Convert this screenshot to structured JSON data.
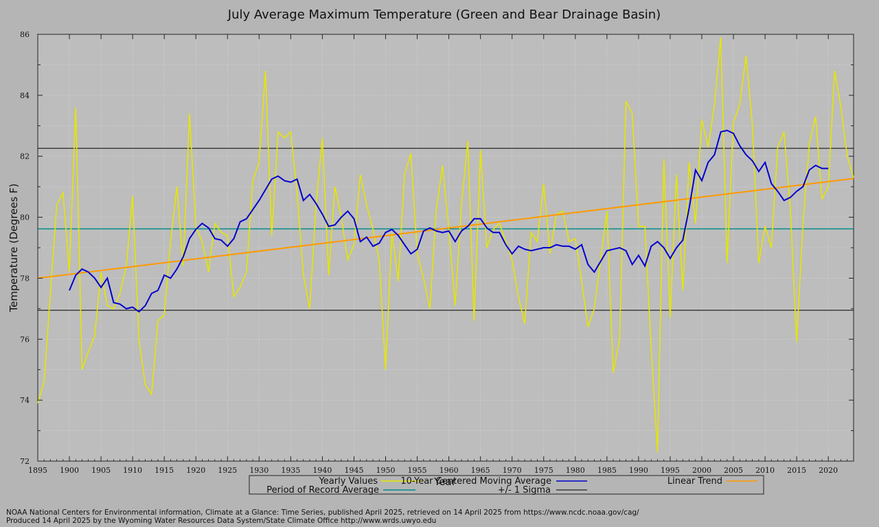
{
  "chart_data": {
    "type": "line",
    "title": "July Average Maximum Temperature (Green and Bear Drainage Basin)",
    "xlabel": "Year",
    "ylabel": "Temperature (Degrees F)",
    "xlim": [
      1895,
      2024
    ],
    "ylim": [
      72,
      86
    ],
    "x_ticks": [
      1895,
      1900,
      1905,
      1910,
      1915,
      1920,
      1925,
      1930,
      1935,
      1940,
      1945,
      1950,
      1955,
      1960,
      1965,
      1970,
      1975,
      1980,
      1985,
      1990,
      1995,
      2000,
      2005,
      2010,
      2015,
      2020
    ],
    "y_ticks": [
      72,
      74,
      76,
      78,
      80,
      82,
      84,
      86
    ],
    "grid": true,
    "colors": {
      "background": "#b5b5b5",
      "plot_area": "#bdbdbd",
      "yearly": "#e6e600",
      "moving_avg": "#0000cc",
      "trend": "#ff9900",
      "record_avg": "#008b8b",
      "sigma": "#000000"
    },
    "series": [
      {
        "name": "Yearly Values",
        "x": [
          1895,
          1896,
          1897,
          1898,
          1899,
          1900,
          1901,
          1902,
          1903,
          1904,
          1905,
          1906,
          1907,
          1908,
          1909,
          1910,
          1911,
          1912,
          1913,
          1914,
          1915,
          1916,
          1917,
          1918,
          1919,
          1920,
          1921,
          1922,
          1923,
          1924,
          1925,
          1926,
          1927,
          1928,
          1929,
          1930,
          1931,
          1932,
          1933,
          1934,
          1935,
          1936,
          1937,
          1938,
          1939,
          1940,
          1941,
          1942,
          1943,
          1944,
          1945,
          1946,
          1947,
          1948,
          1949,
          1950,
          1951,
          1952,
          1953,
          1954,
          1955,
          1956,
          1957,
          1958,
          1959,
          1960,
          1961,
          1962,
          1963,
          1964,
          1965,
          1966,
          1967,
          1968,
          1969,
          1970,
          1971,
          1972,
          1973,
          1974,
          1975,
          1976,
          1977,
          1978,
          1979,
          1980,
          1981,
          1982,
          1983,
          1984,
          1985,
          1986,
          1987,
          1988,
          1989,
          1990,
          1991,
          1992,
          1993,
          1994,
          1995,
          1996,
          1997,
          1998,
          1999,
          2000,
          2001,
          2002,
          2003,
          2004,
          2005,
          2006,
          2007,
          2008,
          2009,
          2010,
          2011,
          2012,
          2013,
          2014,
          2015,
          2016,
          2017,
          2018,
          2019,
          2020,
          2021,
          2022,
          2023,
          2024
        ],
        "values": [
          73.9,
          74.6,
          77.5,
          80.4,
          80.8,
          78.2,
          83.6,
          75.0,
          75.6,
          76.1,
          78.2,
          77.1,
          77.0,
          77.5,
          78.4,
          80.7,
          76.0,
          74.5,
          74.2,
          76.6,
          76.8,
          79.2,
          81.0,
          78.4,
          83.4,
          79.7,
          79.2,
          78.2,
          79.8,
          79.5,
          79.4,
          77.4,
          77.7,
          78.2,
          81.2,
          81.8,
          84.8,
          79.4,
          82.8,
          82.6,
          82.8,
          80.8,
          78.1,
          77.0,
          80.4,
          82.6,
          78.1,
          81.0,
          80.0,
          78.6,
          79.1,
          81.4,
          80.4,
          79.6,
          78.6,
          75.0,
          79.5,
          77.9,
          81.4,
          82.1,
          78.8,
          78.0,
          77.0,
          80.2,
          81.7,
          79.6,
          77.1,
          80.4,
          82.5,
          76.6,
          82.2,
          79.0,
          79.6,
          79.8,
          79.2,
          78.6,
          77.4,
          76.5,
          79.5,
          79.2,
          81.1,
          78.8,
          80.1,
          80.2,
          79.2,
          79.3,
          77.9,
          76.4,
          77.0,
          78.6,
          80.2,
          74.9,
          76.0,
          83.8,
          83.4,
          79.7,
          79.7,
          75.7,
          72.3,
          81.9,
          76.7,
          81.4,
          77.6,
          81.8,
          79.8,
          83.2,
          82.3,
          83.7,
          85.9,
          78.5,
          83.1,
          83.7,
          85.3,
          83.0,
          78.5,
          79.7,
          79.0,
          82.3,
          82.8,
          80.3,
          75.9,
          79.8,
          82.4,
          83.3,
          80.6,
          81.0,
          84.8,
          83.6,
          82.0,
          81.3
        ]
      },
      {
        "name": "10-Year Centered Moving Average",
        "x": [
          1900,
          1901,
          1902,
          1903,
          1904,
          1905,
          1906,
          1907,
          1908,
          1909,
          1910,
          1911,
          1912,
          1913,
          1914,
          1915,
          1916,
          1917,
          1918,
          1919,
          1920,
          1921,
          1922,
          1923,
          1924,
          1925,
          1926,
          1927,
          1928,
          1929,
          1930,
          1931,
          1932,
          1933,
          1934,
          1935,
          1936,
          1937,
          1938,
          1939,
          1940,
          1941,
          1942,
          1943,
          1944,
          1945,
          1946,
          1947,
          1948,
          1949,
          1950,
          1951,
          1952,
          1953,
          1954,
          1955,
          1956,
          1957,
          1958,
          1959,
          1960,
          1961,
          1962,
          1963,
          1964,
          1965,
          1966,
          1967,
          1968,
          1969,
          1970,
          1971,
          1972,
          1973,
          1974,
          1975,
          1976,
          1977,
          1978,
          1979,
          1980,
          1981,
          1982,
          1983,
          1984,
          1985,
          1986,
          1987,
          1988,
          1989,
          1990,
          1991,
          1992,
          1993,
          1994,
          1995,
          1996,
          1997,
          1998,
          1999,
          2000,
          2001,
          2002,
          2003,
          2004,
          2005,
          2006,
          2007,
          2008,
          2009,
          2010,
          2011,
          2012,
          2013,
          2014,
          2015,
          2016,
          2017,
          2018,
          2019,
          2020
        ],
        "values": [
          77.6,
          78.1,
          78.3,
          78.2,
          78.0,
          77.7,
          78.0,
          77.2,
          77.15,
          77.0,
          77.05,
          76.9,
          77.1,
          77.5,
          77.6,
          78.1,
          78.0,
          78.3,
          78.7,
          79.3,
          79.6,
          79.8,
          79.65,
          79.3,
          79.25,
          79.05,
          79.3,
          79.85,
          79.95,
          80.25,
          80.55,
          80.9,
          81.25,
          81.35,
          81.2,
          81.15,
          81.25,
          80.55,
          80.75,
          80.45,
          80.1,
          79.7,
          79.75,
          80.0,
          80.2,
          79.95,
          79.2,
          79.35,
          79.05,
          79.15,
          79.5,
          79.6,
          79.4,
          79.1,
          78.8,
          78.95,
          79.55,
          79.65,
          79.55,
          79.5,
          79.55,
          79.2,
          79.55,
          79.7,
          79.95,
          79.95,
          79.65,
          79.5,
          79.5,
          79.1,
          78.8,
          79.05,
          78.95,
          78.9,
          78.95,
          79.0,
          79.0,
          79.1,
          79.05,
          79.05,
          78.95,
          79.1,
          78.45,
          78.2,
          78.55,
          78.9,
          78.95,
          79.0,
          78.9,
          78.45,
          78.75,
          78.4,
          79.05,
          79.2,
          79.0,
          78.65,
          79.0,
          79.25,
          80.3,
          81.55,
          81.2,
          81.8,
          82.05,
          82.8,
          82.85,
          82.75,
          82.35,
          82.05,
          81.85,
          81.5,
          81.8,
          81.1,
          80.85,
          80.55,
          80.65,
          80.85,
          81.0,
          81.55,
          81.7,
          81.6,
          81.6
        ]
      },
      {
        "name": "Linear Trend",
        "x": [
          1895,
          2024
        ],
        "values": [
          78.0,
          81.27
        ]
      },
      {
        "name": "Period of Record Average",
        "value": 79.62
      },
      {
        "name": "+/- 1 Sigma",
        "values": [
          76.95,
          82.26
        ]
      }
    ],
    "legend": {
      "placement": "bottom-center",
      "entries": [
        "Yearly Values",
        "10-Year Centered Moving Average",
        "Linear Trend",
        "Period of Record Average",
        "+/- 1 Sigma"
      ]
    }
  },
  "footer": {
    "line1": "NOAA National Centers for Environmental information, Climate at a Glance: Time Series, published April 2025, retrieved on 14 April 2025 from https://www.ncdc.noaa.gov/cag/",
    "line2": "Produced 14 April 2025 by the Wyoming Water Resources Data System/State Climate Office http://www.wrds.uwyo.edu"
  }
}
